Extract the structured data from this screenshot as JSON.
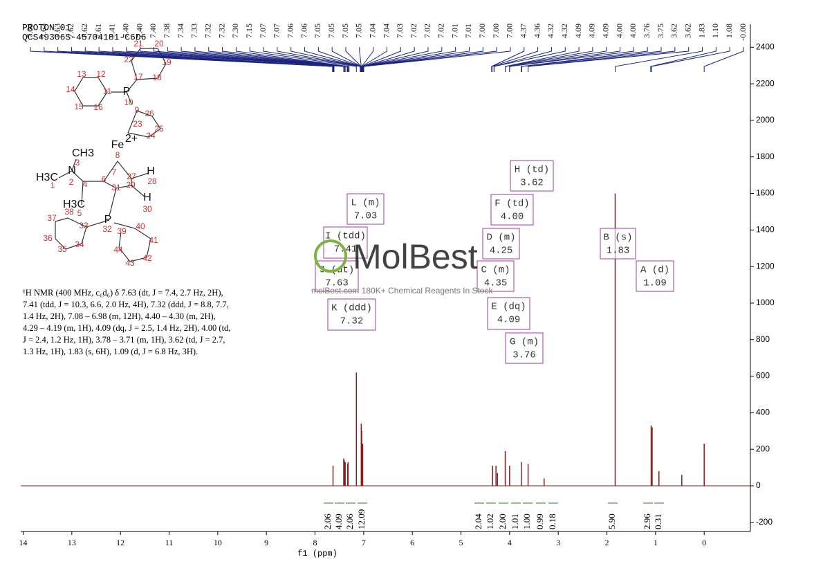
{
  "chart_data": {
    "type": "nmr",
    "header": [
      "PROTON_01",
      "QCS49306S-45704181-C6D6"
    ],
    "x_label": "f1 (ppm)",
    "xlim": [
      14.05,
      -0.95
    ],
    "xticks": [
      14,
      13,
      12,
      11,
      10,
      9,
      8,
      7,
      6,
      5,
      4,
      3,
      2,
      1,
      0
    ],
    "ylim": [
      -250,
      2526
    ],
    "yticks": [
      -200,
      0,
      200,
      400,
      600,
      800,
      1000,
      1200,
      1400,
      1600,
      1800,
      2000,
      2200,
      2400
    ],
    "color": "#8b1a1a",
    "x": [
      7.63,
      7.41,
      7.4,
      7.38,
      7.33,
      7.32,
      7.15,
      7.05,
      7.04,
      7.02,
      4.35,
      4.28,
      4.25,
      4.09,
      4.0,
      3.76,
      3.62,
      3.29,
      1.83,
      1.09,
      1.07,
      0.93,
      0.46,
      0.0
    ],
    "values": [
      110,
      150,
      140,
      130,
      120,
      130,
      620,
      340,
      300,
      230,
      110,
      110,
      70,
      190,
      110,
      130,
      120,
      40,
      1600,
      330,
      320,
      80,
      60,
      230
    ],
    "peak_labels": [
      "7.64",
      "7.63",
      "7.63",
      "7.62",
      "7.62",
      "7.61",
      "7.41",
      "7.40",
      "7.40",
      "7.40",
      "7.38",
      "7.34",
      "7.33",
      "7.32",
      "7.32",
      "7.30",
      "7.15",
      "7.07",
      "7.07",
      "7.06",
      "7.06",
      "7.05",
      "7.05",
      "7.05",
      "7.05",
      "7.04",
      "7.04",
      "7.03",
      "7.02",
      "7.02",
      "7.02",
      "7.01",
      "7.01",
      "7.00",
      "7.00",
      "7.00",
      "4.37",
      "4.36",
      "4.32",
      "4.32",
      "4.09",
      "4.09",
      "4.09",
      "4.00",
      "4.00",
      "3.76",
      "3.75",
      "3.62",
      "3.62",
      "1.83",
      "1.10",
      "1.08",
      "-0.00"
    ],
    "integrals": [
      "2.06",
      "4.09",
      "2.06",
      "12.09",
      "2.04",
      "1.02",
      "2.00",
      "1.01",
      "1.00",
      "0.99",
      "0.18",
      "5.90",
      "2.96",
      "0.31"
    ],
    "multiplets": [
      {
        "name": "L (m)",
        "shift": "7.03"
      },
      {
        "name": "I (tdd)",
        "shift": "7.41"
      },
      {
        "name": "J (dt)",
        "shift": "7.63"
      },
      {
        "name": "K (ddd)",
        "shift": "7.32"
      },
      {
        "name": "H (td)",
        "shift": "3.62"
      },
      {
        "name": "F (td)",
        "shift": "4.00"
      },
      {
        "name": "D (m)",
        "shift": "4.25"
      },
      {
        "name": "C (m)",
        "shift": "4.35"
      },
      {
        "name": "E (dq)",
        "shift": "4.09"
      },
      {
        "name": "G (m)",
        "shift": "3.76"
      },
      {
        "name": "B (s)",
        "shift": "1.83"
      },
      {
        "name": "A (d)",
        "shift": "1.09"
      }
    ],
    "description": [
      "¹H NMR (400 MHz, c₆d₆) δ 7.63 (dt, J = 7.4, 2.7 Hz, 2H),",
      "7.41 (tdd, J = 10.3, 6.6, 2.0 Hz, 4H), 7.32 (ddd, J = 8.8, 7.7,",
      "1.4 Hz, 2H), 7.08 – 6.98 (m, 12H), 4.40 – 4.30 (m, 2H),",
      "4.29 – 4.19 (m, 1H), 4.09 (dq, J = 2.5, 1.4 Hz, 2H), 4.00 (td,",
      "J = 2.4, 1.2 Hz, 1H), 3.78 – 3.71 (m, 1H), 3.62 (td, J = 2.7,",
      "1.3 Hz, 1H), 1.83 (s, 6H), 1.09 (d, J = 6.8 Hz, 3H)."
    ],
    "structure_labels": [
      "P",
      "21",
      "20",
      "22",
      "19",
      "17",
      "18",
      "13",
      "12",
      "11",
      "14",
      "15",
      "16",
      "10",
      "9",
      "26",
      "23",
      "25",
      "24",
      "2+",
      "Fe",
      "CH3",
      "3",
      "N",
      "H3C",
      "1",
      "2",
      "4",
      "6",
      "8",
      "7",
      "27",
      "H",
      "28",
      "29",
      "31",
      "H",
      "30",
      "H3C",
      "38",
      "5",
      "37",
      "33",
      "P",
      "32",
      "39",
      "40",
      "36",
      "34",
      "41",
      "35",
      "44",
      "42",
      "43"
    ],
    "watermark": [
      "MolBest",
      "molBest.com 180K+ Chemical Reagents In Stock"
    ]
  }
}
